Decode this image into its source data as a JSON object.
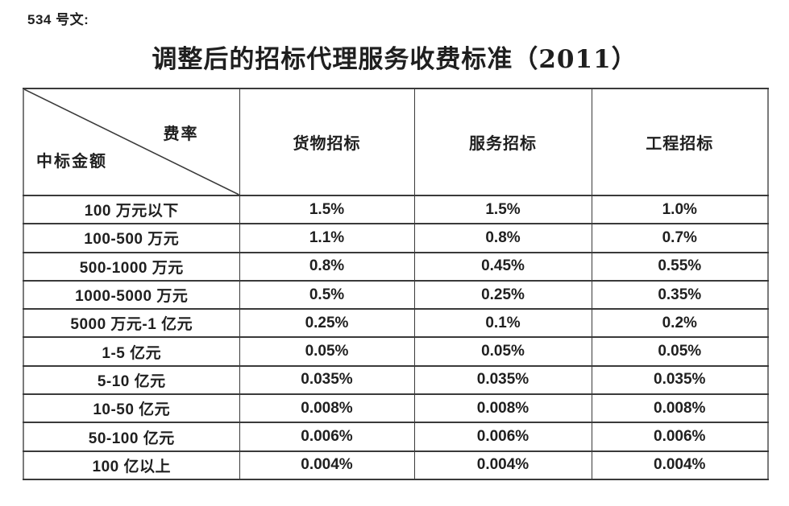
{
  "document": {
    "doc_label": "534 号文:",
    "title": "调整后的招标代理服务收费标准（2011）"
  },
  "table": {
    "corner": {
      "top_right": "费率",
      "bottom_left": "中标金额"
    },
    "columns": [
      "货物招标",
      "服务招标",
      "工程招标"
    ],
    "rows": [
      {
        "label": "100 万元以下",
        "values": [
          "1.5%",
          "1.5%",
          "1.0%"
        ]
      },
      {
        "label": "100-500 万元",
        "values": [
          "1.1%",
          "0.8%",
          "0.7%"
        ]
      },
      {
        "label": "500-1000 万元",
        "values": [
          "0.8%",
          "0.45%",
          "0.55%"
        ]
      },
      {
        "label": "1000-5000 万元",
        "values": [
          "0.5%",
          "0.25%",
          "0.35%"
        ]
      },
      {
        "label": "5000 万元-1 亿元",
        "values": [
          "0.25%",
          "0.1%",
          "0.2%"
        ]
      },
      {
        "label": "1-5 亿元",
        "values": [
          "0.05%",
          "0.05%",
          "0.05%"
        ]
      },
      {
        "label": "5-10 亿元",
        "values": [
          "0.035%",
          "0.035%",
          "0.035%"
        ]
      },
      {
        "label": "10-50 亿元",
        "values": [
          "0.008%",
          "0.008%",
          "0.008%"
        ]
      },
      {
        "label": "50-100 亿元",
        "values": [
          "0.006%",
          "0.006%",
          "0.006%"
        ]
      },
      {
        "label": "100 亿以上",
        "values": [
          "0.004%",
          "0.004%",
          "0.004%"
        ]
      }
    ]
  },
  "colors": {
    "background": "#ffffff",
    "text": "#1f1f1f",
    "border_inner": "#3a3a3a",
    "border_outer": "#7a7a7a"
  }
}
